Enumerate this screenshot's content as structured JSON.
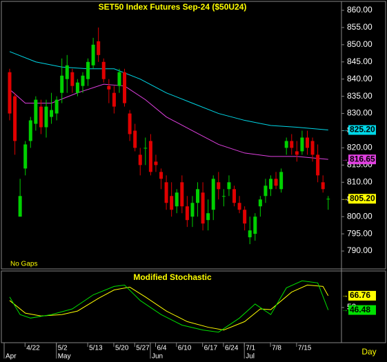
{
  "chart_data": [
    {
      "type": "candlestick",
      "title": "SET50  Index  Futures  Sep-24  ($50U24)",
      "note": "No Gaps",
      "up_color": "#00d000",
      "down_color": "#e00000",
      "open": [
        842,
        835,
        800,
        814,
        822,
        827,
        832,
        826,
        829,
        830,
        836,
        840,
        842,
        836,
        838,
        840,
        844,
        851,
        845,
        838,
        836,
        838,
        842,
        830,
        825,
        818,
        820,
        822,
        816,
        813,
        810,
        806,
        803,
        810,
        803,
        800,
        804,
        807,
        799,
        802,
        810,
        806,
        808,
        808,
        804,
        802,
        794,
        795,
        803,
        806,
        808,
        811,
        808,
        820,
        822,
        819,
        819,
        823,
        822,
        818,
        810,
        805
      ],
      "high": [
        843,
        836,
        811,
        822,
        829,
        835,
        834,
        834,
        836,
        835,
        846,
        847,
        843,
        840,
        842,
        846,
        852,
        855,
        846,
        840,
        838,
        843,
        843,
        831,
        827,
        820,
        823,
        824,
        818,
        814,
        812,
        810,
        808,
        812,
        806,
        806,
        810,
        810,
        805,
        812,
        813,
        808,
        812,
        809,
        806,
        803,
        800,
        801,
        806,
        811,
        812,
        813,
        814,
        823,
        824,
        822,
        825,
        825,
        823,
        821,
        812,
        806
      ],
      "low": [
        828,
        818,
        800,
        812,
        820,
        825,
        824,
        823,
        827,
        828,
        833,
        836,
        836,
        835,
        836,
        838,
        843,
        845,
        839,
        833,
        830,
        836,
        832,
        822,
        819,
        812,
        815,
        812,
        813,
        808,
        802,
        800,
        801,
        801,
        797,
        797,
        800,
        796,
        796,
        799,
        805,
        803,
        806,
        803,
        801,
        796,
        792,
        793,
        800,
        804,
        806,
        808,
        807,
        818,
        818,
        816,
        818,
        818,
        816,
        810,
        807,
        802
      ],
      "close": [
        830,
        822,
        806,
        821,
        828,
        834,
        826,
        832,
        831,
        834,
        841,
        844,
        838,
        839,
        841,
        845,
        850,
        847,
        840,
        837,
        832,
        842,
        833,
        824,
        820,
        815,
        820,
        813,
        815,
        811,
        804,
        802,
        807,
        803,
        799,
        804,
        808,
        798,
        801,
        811,
        808,
        806,
        810,
        804,
        802,
        798,
        796,
        800,
        805,
        809,
        811,
        809,
        813,
        822,
        820,
        818,
        823,
        820,
        818,
        812,
        808,
        805.2
      ],
      "close_label": "805.20",
      "close_label_color": "#ffff00",
      "ylim": [
        784.8,
        863
      ],
      "yticks": [
        {
          "value": 860,
          "label": "860.00"
        },
        {
          "value": 855,
          "label": "855.00"
        },
        {
          "value": 850,
          "label": "850.00"
        },
        {
          "value": 845,
          "label": "845.00"
        },
        {
          "value": 840,
          "label": "840.00"
        },
        {
          "value": 835,
          "label": "835.00"
        },
        {
          "value": 830,
          "label": "830.00"
        },
        {
          "value": 825,
          "label": "825.00"
        },
        {
          "value": 820,
          "label": "820.00"
        },
        {
          "value": 815,
          "label": "815.00"
        },
        {
          "value": 810,
          "label": "810.00"
        },
        {
          "value": 805,
          "label": "805.00"
        },
        {
          "value": 800,
          "label": "800.00"
        },
        {
          "value": 795,
          "label": "795.00"
        },
        {
          "value": 790,
          "label": "790.00"
        }
      ],
      "overlays": [
        {
          "color": "#00d8e8",
          "x": [
            0,
            5,
            10,
            15,
            20,
            25,
            30,
            35,
            40,
            45,
            50,
            55,
            61
          ],
          "values": [
            848,
            845,
            843.5,
            843,
            843,
            840,
            836,
            833,
            830,
            828,
            826.5,
            826,
            825.2
          ],
          "last_label": "825.20"
        },
        {
          "color": "#e040e0",
          "x": [
            0,
            3,
            8,
            13,
            18,
            22,
            26,
            30,
            35,
            40,
            45,
            50,
            55,
            61
          ],
          "values": [
            837,
            833,
            833,
            836,
            838.5,
            838,
            834,
            829,
            825,
            821,
            818.5,
            817.5,
            817.5,
            816.65
          ],
          "last_label": "816.65"
        }
      ]
    },
    {
      "type": "line",
      "title": "Modified  Stochastic",
      "ylim": [
        0,
        100
      ],
      "yticks": [
        50
      ],
      "series": [
        {
          "color": "#ffff00",
          "x": [
            0,
            3,
            6,
            10,
            13,
            17,
            20,
            23,
            26,
            30,
            34,
            38,
            41,
            45,
            48,
            50,
            54,
            57,
            60,
            61
          ],
          "values": [
            60,
            42,
            38,
            40,
            45,
            63,
            75,
            79,
            65,
            45,
            30,
            22,
            18,
            30,
            48,
            47,
            72,
            82,
            80,
            66.76
          ],
          "last_label": "66.76"
        },
        {
          "color": "#00e000",
          "x": [
            0,
            2,
            4,
            8,
            12,
            16,
            20,
            22,
            25,
            29,
            33,
            37,
            40,
            44,
            47,
            50,
            53,
            56,
            59,
            61
          ],
          "values": [
            65,
            40,
            35,
            40,
            48,
            68,
            80,
            82,
            60,
            40,
            25,
            18,
            15,
            35,
            55,
            40,
            78,
            88,
            85,
            46.48
          ],
          "last_label": "46.48"
        }
      ],
      "date_ticks": [
        {
          "value": 4,
          "label": "4/22"
        },
        {
          "value": 10,
          "label": "5/2"
        },
        {
          "value": 16,
          "label": "5/13"
        },
        {
          "value": 21,
          "label": "5/20"
        },
        {
          "value": 25,
          "label": "5/27"
        },
        {
          "value": 29,
          "label": "6/4"
        },
        {
          "value": 33,
          "label": "6/10"
        },
        {
          "value": 38,
          "label": "6/17"
        },
        {
          "value": 42,
          "label": "6/24"
        },
        {
          "value": 46,
          "label": "7/1"
        },
        {
          "value": 51,
          "label": "7/8"
        },
        {
          "value": 56,
          "label": "7/15"
        }
      ],
      "month_ticks": [
        {
          "value": 0,
          "label": "Apr"
        },
        {
          "value": 10,
          "label": "May"
        },
        {
          "value": 28,
          "label": "Jun"
        },
        {
          "value": 46,
          "label": "Jul"
        }
      ],
      "period": "Day"
    }
  ]
}
